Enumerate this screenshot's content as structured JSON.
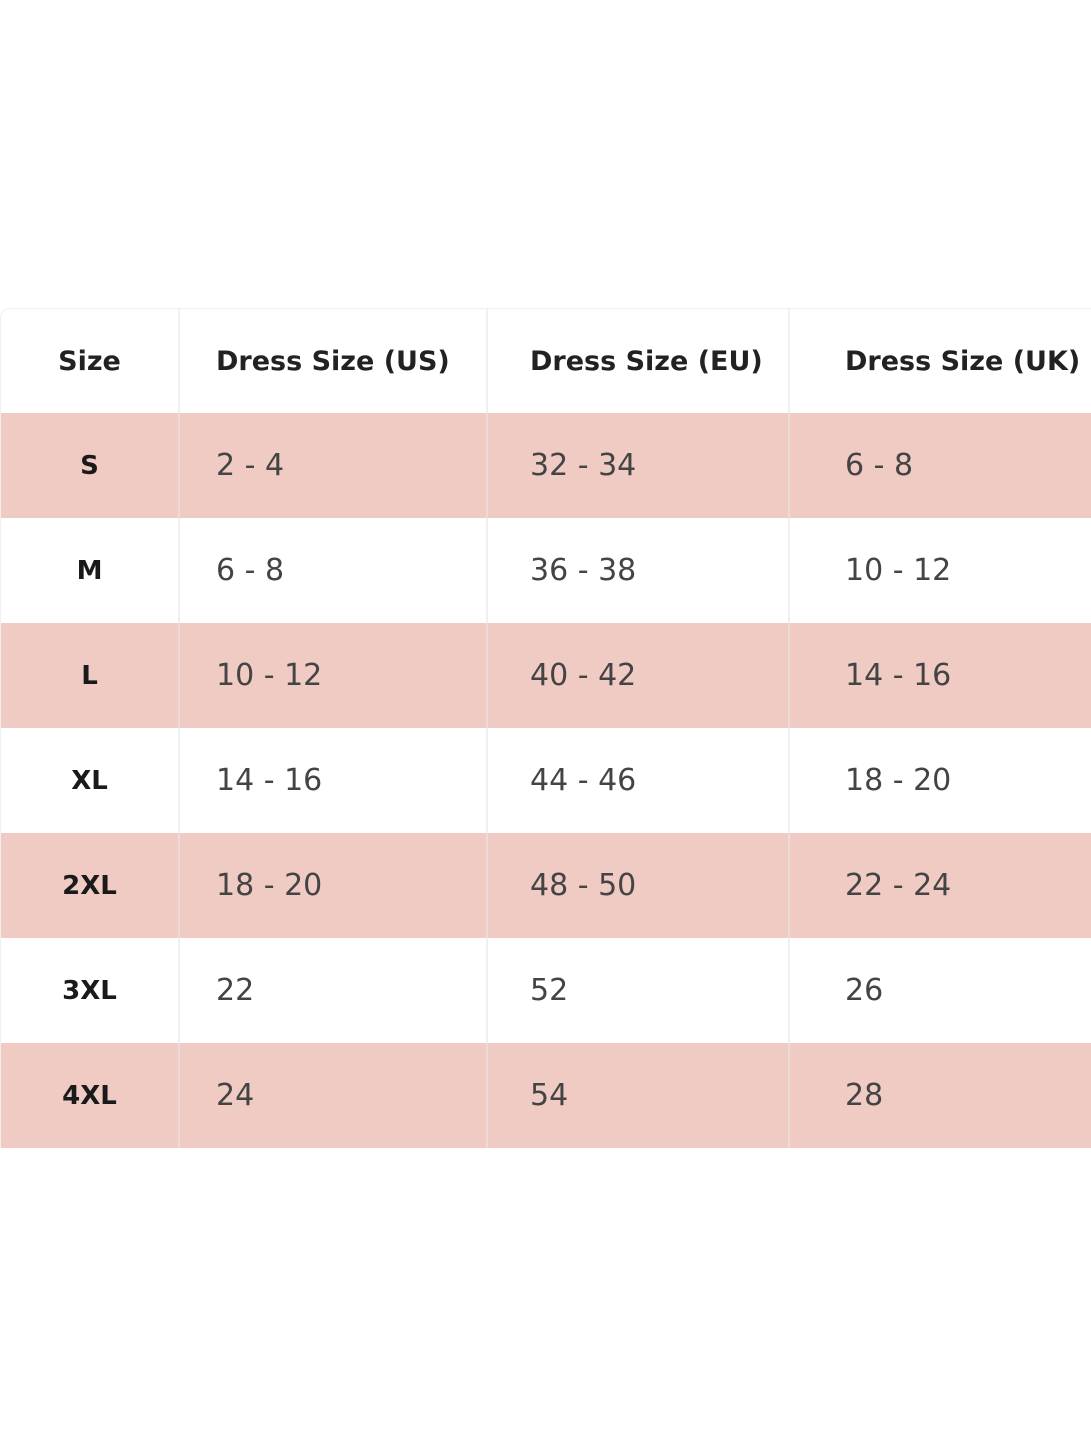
{
  "table": {
    "headers": [
      "Size",
      "Dress Size (US)",
      "Dress Size (EU)",
      "Dress Size (UK)"
    ],
    "rows": [
      [
        "S",
        "2 - 4",
        "32 - 34",
        "6 - 8"
      ],
      [
        "M",
        "6 - 8",
        "36 - 38",
        "10 - 12"
      ],
      [
        "L",
        "10 - 12",
        "40 - 42",
        "14 - 16"
      ],
      [
        "XL",
        "14 - 16",
        "44 - 46",
        "18 - 20"
      ],
      [
        "2XL",
        "18 - 20",
        "48 - 50",
        "22 - 24"
      ],
      [
        "3XL",
        "22",
        "52",
        "26"
      ],
      [
        "4XL",
        "24",
        "54",
        "28"
      ]
    ],
    "stripe_color": "#efcbc4"
  }
}
